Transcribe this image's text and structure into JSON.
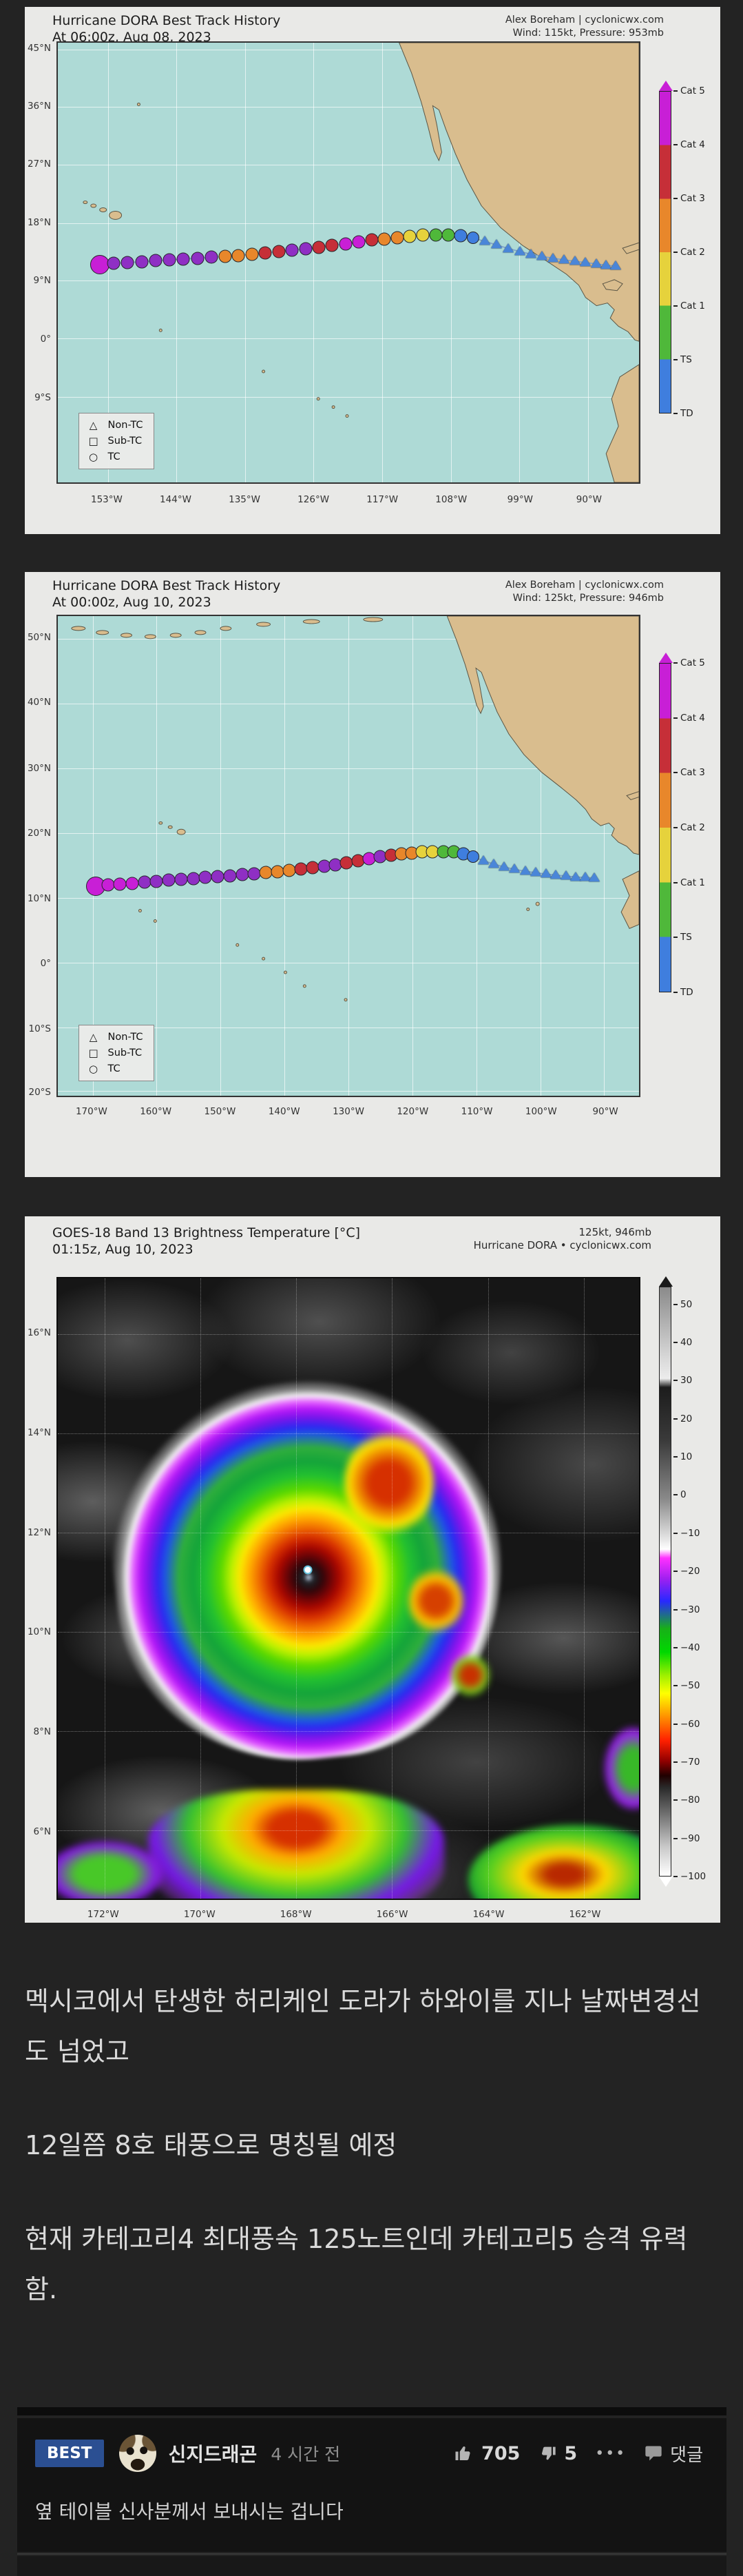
{
  "palette": {
    "magenta": "#c81fd6",
    "violet": "#8f2fc4",
    "red": "#c62f38",
    "orange": "#e8872b",
    "yellow": "#e6d23c",
    "green": "#4fb83a",
    "blue": "#3f7ede",
    "triangle": "#4a86d8",
    "segments": [
      "#3f7ede",
      "#4fb83a",
      "#e6d23c",
      "#e8872b",
      "#c62f38",
      "#c81fd6"
    ]
  },
  "map1": {
    "title1": "Hurricane DORA Best Track History",
    "title2": "At 06:00z, Aug 08, 2023",
    "credit1": "Alex Boreham | cyclonicwx.com",
    "credit2": "Wind: 115kt, Pressure: 953mb",
    "x_ticks": [
      [
        "153°W",
        8.6
      ],
      [
        "144°W",
        20.4
      ],
      [
        "135°W",
        32.2
      ],
      [
        "126°W",
        44.0
      ],
      [
        "117°W",
        55.8
      ],
      [
        "108°W",
        67.6
      ],
      [
        "99°W",
        79.4
      ],
      [
        "90°W",
        91.2
      ]
    ],
    "y_ticks": [
      [
        "45°N",
        1.5
      ],
      [
        "36°N",
        14.6
      ],
      [
        "27°N",
        27.8
      ],
      [
        "18°N",
        41.0
      ],
      [
        "9°N",
        54.1
      ],
      [
        "0°",
        67.3
      ],
      [
        "9°S",
        80.5
      ]
    ],
    "legend": [
      [
        "△",
        "Non-TC"
      ],
      [
        "□",
        "Sub-TC"
      ],
      [
        "○",
        "TC"
      ]
    ],
    "cbar_labels": [
      "Cat 5",
      "Cat 4",
      "Cat 3",
      "Cat 2",
      "Cat 1",
      "TS",
      "TD"
    ],
    "track_circles": [
      [
        7.2,
        50.4,
        "magenta",
        28
      ],
      [
        9.6,
        50.2,
        "violet",
        19
      ],
      [
        12.0,
        50.0,
        "violet",
        19
      ],
      [
        14.4,
        49.8,
        "violet",
        19
      ],
      [
        16.8,
        49.6,
        "violet",
        19
      ],
      [
        19.2,
        49.4,
        "violet",
        19
      ],
      [
        21.6,
        49.2,
        "violet",
        19
      ],
      [
        24.0,
        49.0,
        "violet",
        19
      ],
      [
        26.4,
        48.8,
        "violet",
        19
      ],
      [
        28.8,
        48.6,
        "orange",
        19
      ],
      [
        31.1,
        48.4,
        "orange",
        19
      ],
      [
        33.4,
        48.1,
        "orange",
        19
      ],
      [
        35.7,
        47.8,
        "red",
        19
      ],
      [
        38.0,
        47.5,
        "red",
        19
      ],
      [
        40.3,
        47.2,
        "violet",
        19
      ],
      [
        42.6,
        46.9,
        "violet",
        19
      ],
      [
        44.9,
        46.5,
        "red",
        19
      ],
      [
        47.2,
        46.1,
        "red",
        19
      ],
      [
        49.5,
        45.7,
        "magenta",
        19
      ],
      [
        51.8,
        45.3,
        "magenta",
        19
      ],
      [
        54.0,
        44.9,
        "red",
        19
      ],
      [
        56.2,
        44.6,
        "orange",
        19
      ],
      [
        58.4,
        44.3,
        "orange",
        19
      ],
      [
        60.6,
        44.0,
        "yellow",
        19
      ],
      [
        62.8,
        43.8,
        "yellow",
        19
      ],
      [
        65.0,
        43.7,
        "green",
        19
      ],
      [
        67.2,
        43.7,
        "green",
        19
      ],
      [
        69.3,
        43.9,
        "blue",
        19
      ],
      [
        71.4,
        44.4,
        "blue",
        18
      ]
    ],
    "track_triangles": [
      [
        73.5,
        45.2
      ],
      [
        75.5,
        46.0
      ],
      [
        77.5,
        46.8
      ],
      [
        79.5,
        47.5
      ],
      [
        81.4,
        48.1
      ],
      [
        83.3,
        48.6
      ],
      [
        85.2,
        49.0
      ],
      [
        87.1,
        49.4
      ],
      [
        89.0,
        49.7
      ],
      [
        90.8,
        50.0
      ],
      [
        92.6,
        50.3
      ],
      [
        94.3,
        50.6
      ],
      [
        96.0,
        50.8
      ]
    ]
  },
  "map2": {
    "title1": "Hurricane DORA Best Track History",
    "title2": "At 00:00z, Aug 10, 2023",
    "credit1": "Alex Boreham | cyclonicwx.com",
    "credit2": "Wind: 125kt, Pressure: 946mb",
    "x_ticks": [
      [
        "170°W",
        6
      ],
      [
        "160°W",
        17
      ],
      [
        "150°W",
        28
      ],
      [
        "140°W",
        39
      ],
      [
        "130°W",
        50
      ],
      [
        "120°W",
        61
      ],
      [
        "110°W",
        72
      ],
      [
        "100°W",
        83
      ],
      [
        "90°W",
        94
      ]
    ],
    "y_ticks": [
      [
        "50°N",
        4.7
      ],
      [
        "40°N",
        18.2
      ],
      [
        "30°N",
        31.8
      ],
      [
        "20°N",
        45.3
      ],
      [
        "10°N",
        58.8
      ],
      [
        "0°",
        72.3
      ],
      [
        "10°S",
        85.8
      ],
      [
        "20°S",
        99.0
      ]
    ],
    "legend": [
      [
        "△",
        "Non-TC"
      ],
      [
        "□",
        "Sub-TC"
      ],
      [
        "○",
        "TC"
      ]
    ],
    "cbar_labels": [
      "Cat 5",
      "Cat 4",
      "Cat 3",
      "Cat 2",
      "Cat 1",
      "TS",
      "TD"
    ],
    "track_circles": [
      [
        6.5,
        56.3,
        "magenta",
        28
      ],
      [
        8.6,
        56.1,
        "magenta",
        19
      ],
      [
        10.7,
        55.9,
        "magenta",
        19
      ],
      [
        12.8,
        55.7,
        "magenta",
        19
      ],
      [
        14.9,
        55.5,
        "violet",
        19
      ],
      [
        17.0,
        55.3,
        "violet",
        19
      ],
      [
        19.1,
        55.1,
        "violet",
        19
      ],
      [
        21.2,
        54.9,
        "violet",
        19
      ],
      [
        23.3,
        54.7,
        "violet",
        19
      ],
      [
        25.4,
        54.5,
        "violet",
        19
      ],
      [
        27.5,
        54.3,
        "violet",
        19
      ],
      [
        29.6,
        54.1,
        "violet",
        19
      ],
      [
        31.7,
        53.9,
        "violet",
        19
      ],
      [
        33.8,
        53.7,
        "violet",
        19
      ],
      [
        35.8,
        53.5,
        "orange",
        19
      ],
      [
        37.8,
        53.3,
        "orange",
        19
      ],
      [
        39.8,
        53.0,
        "orange",
        19
      ],
      [
        41.8,
        52.7,
        "red",
        19
      ],
      [
        43.8,
        52.4,
        "red",
        19
      ],
      [
        45.8,
        52.1,
        "violet",
        19
      ],
      [
        47.8,
        51.8,
        "violet",
        19
      ],
      [
        49.7,
        51.4,
        "red",
        19
      ],
      [
        51.6,
        51.0,
        "red",
        19
      ],
      [
        53.5,
        50.6,
        "magenta",
        19
      ],
      [
        55.4,
        50.2,
        "violet",
        19
      ],
      [
        57.3,
        49.9,
        "red",
        19
      ],
      [
        59.1,
        49.6,
        "orange",
        19
      ],
      [
        60.9,
        49.4,
        "orange",
        19
      ],
      [
        62.7,
        49.2,
        "yellow",
        19
      ],
      [
        64.5,
        49.1,
        "yellow",
        19
      ],
      [
        66.3,
        49.1,
        "green",
        19
      ],
      [
        68.1,
        49.2,
        "green",
        19
      ],
      [
        69.8,
        49.6,
        "blue",
        19
      ],
      [
        71.5,
        50.2,
        "blue",
        18
      ]
    ],
    "track_triangles": [
      [
        73.2,
        51.0
      ],
      [
        75.0,
        51.7
      ],
      [
        76.8,
        52.3
      ],
      [
        78.6,
        52.8
      ],
      [
        80.4,
        53.2
      ],
      [
        82.2,
        53.5
      ],
      [
        84.0,
        53.8
      ],
      [
        85.7,
        54.0
      ],
      [
        87.4,
        54.2
      ],
      [
        89.1,
        54.4
      ],
      [
        90.7,
        54.5
      ],
      [
        92.3,
        54.6
      ]
    ]
  },
  "sat": {
    "title1": "GOES-18 Band 13 Brightness Temperature [°C]",
    "title2": "01:15z, Aug 10, 2023",
    "credit1": "125kt, 946mb",
    "credit2": "Hurricane DORA • cyclonicwx.com",
    "x_ticks": [
      [
        "172°W",
        8
      ],
      [
        "170°W",
        24.5
      ],
      [
        "168°W",
        41
      ],
      [
        "166°W",
        57.5
      ],
      [
        "164°W",
        74
      ],
      [
        "162°W",
        90.5
      ]
    ],
    "y_ticks": [
      [
        "16°N",
        9
      ],
      [
        "14°N",
        25
      ],
      [
        "12°N",
        41
      ],
      [
        "10°N",
        57
      ],
      [
        "8°N",
        73
      ],
      [
        "6°N",
        89
      ]
    ],
    "cbar_ticks": [
      "50",
      "40",
      "30",
      "20",
      "10",
      "0",
      "−10",
      "−20",
      "−30",
      "−40",
      "−50",
      "−60",
      "−70",
      "−80",
      "−90",
      "−100"
    ]
  },
  "post": {
    "paragraphs": [
      "멕시코에서 탄생한 허리케인 도라가 하와이를 지나 날짜변경선도 넘었고",
      "12일쯤 8호 태풍으로 명칭될 예정",
      "현재 카테고리4 최대풍속 125노트인데 카테고리5 승격 유력함."
    ]
  },
  "comment": {
    "badge": "BEST",
    "username": "신지드래곤",
    "time": "4 시간 전",
    "likes": "705",
    "dislikes": "5",
    "more": "•••",
    "reply": "댓글",
    "text": "옆 테이블 신사분께서 보내시는 겁니다"
  },
  "chart_data": [
    {
      "type": "scatter",
      "title": "Hurricane DORA Best Track History — At 06:00z, Aug 08, 2023",
      "annotation": "Wind: 115kt, Pressure: 953mb · Alex Boreham | cyclonicwx.com",
      "x_tick_labels": [
        "153°W",
        "144°W",
        "135°W",
        "126°W",
        "117°W",
        "108°W",
        "99°W",
        "90°W"
      ],
      "y_tick_labels": [
        "45°N",
        "36°N",
        "27°N",
        "18°N",
        "9°N",
        "0°",
        "9°S"
      ],
      "legend": [
        "Non-TC",
        "Sub-TC",
        "TC"
      ],
      "colorbar_categories": [
        "TD",
        "TS",
        "Cat 1",
        "Cat 2",
        "Cat 3",
        "Cat 4",
        "Cat 5"
      ],
      "description": "Best-track points from a non-TC disturbance near Central America (~93°W, 11°N) westward, intensifying to Cat 4–5 near 151°W, 12°N"
    },
    {
      "type": "scatter",
      "title": "Hurricane DORA Best Track History — At 00:00z, Aug 10, 2023",
      "annotation": "Wind: 125kt, Pressure: 946mb · Alex Boreham | cyclonicwx.com",
      "x_tick_labels": [
        "170°W",
        "160°W",
        "150°W",
        "140°W",
        "130°W",
        "120°W",
        "110°W",
        "100°W",
        "90°W"
      ],
      "y_tick_labels": [
        "50°N",
        "40°N",
        "30°N",
        "20°N",
        "10°N",
        "0°",
        "10°S",
        "20°S"
      ],
      "legend": [
        "Non-TC",
        "Sub-TC",
        "TC"
      ],
      "colorbar_categories": [
        "TD",
        "TS",
        "Cat 1",
        "Cat 2",
        "Cat 3",
        "Cat 4",
        "Cat 5"
      ],
      "description": "Track extended west past Hawaii toward ~171°W at Cat 4–5 intensity"
    },
    {
      "type": "heatmap",
      "title": "GOES-18 Band 13 Brightness Temperature [°C] — 01:15z, Aug 10, 2023",
      "annotation": "125kt, 946mb · Hurricane DORA • cyclonicwx.com",
      "x_tick_labels": [
        "172°W",
        "170°W",
        "168°W",
        "166°W",
        "164°W",
        "162°W"
      ],
      "y_tick_labels": [
        "16°N",
        "14°N",
        "12°N",
        "10°N",
        "8°N",
        "6°N"
      ],
      "colorbar_range": [
        50,
        -100
      ],
      "colorbar_ticks": [
        50,
        40,
        30,
        20,
        10,
        0,
        -10,
        -20,
        -30,
        -40,
        -50,
        -60,
        -70,
        -80,
        -90,
        -100
      ],
      "description": "IR satellite image of Hurricane Dora centered near 167.8°W, 11.5°N with cold cloud tops (−70 to −80°C eyewall ring) around a warm clear eye"
    }
  ]
}
